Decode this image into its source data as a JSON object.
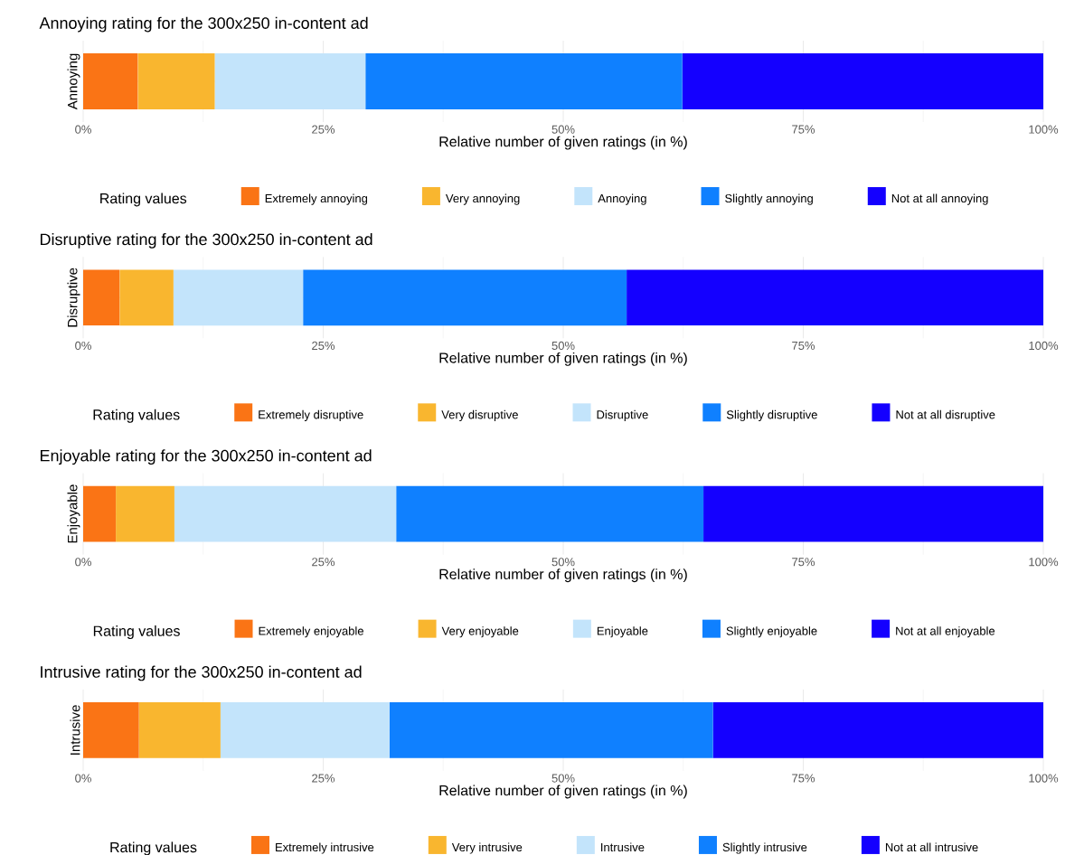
{
  "chart_data": [
    {
      "type": "bar",
      "orientation": "horizontal",
      "stacked": true,
      "title": "Annoying rating for the 300x250 in-content ad",
      "xlabel": "Relative number of given ratings (in %)",
      "legend_title": "Rating values",
      "legend": "bottom",
      "grid": true,
      "categories": [
        "Annoying"
      ],
      "xlim": [
        0,
        100
      ],
      "xticks": [
        {
          "value": 0,
          "label": "0%"
        },
        {
          "value": 25,
          "label": "25%"
        },
        {
          "value": 50,
          "label": "50%"
        },
        {
          "value": 75,
          "label": "75%"
        },
        {
          "value": 100,
          "label": "100%"
        }
      ],
      "series": [
        {
          "name": "Extremely annoying",
          "color": "#fa7415",
          "values": [
            5.7
          ]
        },
        {
          "name": "Very annoying",
          "color": "#f9b62f",
          "values": [
            8.0
          ]
        },
        {
          "name": "Annoying",
          "color": "#c3e4fb",
          "values": [
            15.7
          ]
        },
        {
          "name": "Slightly annoying",
          "color": "#0f80ff",
          "values": [
            33.0
          ]
        },
        {
          "name": "Not at all annoying",
          "color": "#1400ff",
          "values": [
            37.6
          ]
        }
      ]
    },
    {
      "type": "bar",
      "orientation": "horizontal",
      "stacked": true,
      "title": "Disruptive rating for the 300x250 in-content ad",
      "xlabel": "Relative number of given ratings (in %)",
      "legend_title": "Rating values",
      "legend": "bottom",
      "grid": true,
      "categories": [
        "Disruptive"
      ],
      "xlim": [
        0,
        100
      ],
      "xticks": [
        {
          "value": 0,
          "label": "0%"
        },
        {
          "value": 25,
          "label": "25%"
        },
        {
          "value": 50,
          "label": "50%"
        },
        {
          "value": 75,
          "label": "75%"
        },
        {
          "value": 100,
          "label": "100%"
        }
      ],
      "series": [
        {
          "name": "Extremely disruptive",
          "color": "#fa7415",
          "values": [
            3.8
          ]
        },
        {
          "name": "Very disruptive",
          "color": "#f9b62f",
          "values": [
            5.6
          ]
        },
        {
          "name": "Disruptive",
          "color": "#c3e4fb",
          "values": [
            13.5
          ]
        },
        {
          "name": "Slightly disruptive",
          "color": "#0f80ff",
          "values": [
            33.7
          ]
        },
        {
          "name": "Not at all disruptive",
          "color": "#1400ff",
          "values": [
            43.4
          ]
        }
      ]
    },
    {
      "type": "bar",
      "orientation": "horizontal",
      "stacked": true,
      "title": "Enjoyable rating for the 300x250 in-content ad",
      "xlabel": "Relative number of given ratings (in %)",
      "legend_title": "Rating values",
      "legend": "bottom",
      "grid": true,
      "categories": [
        "Enjoyable"
      ],
      "xlim": [
        0,
        100
      ],
      "xticks": [
        {
          "value": 0,
          "label": "0%"
        },
        {
          "value": 25,
          "label": "25%"
        },
        {
          "value": 50,
          "label": "50%"
        },
        {
          "value": 75,
          "label": "75%"
        },
        {
          "value": 100,
          "label": "100%"
        }
      ],
      "series": [
        {
          "name": "Extremely enjoyable",
          "color": "#fa7415",
          "values": [
            3.4
          ]
        },
        {
          "name": "Very enjoyable",
          "color": "#f9b62f",
          "values": [
            6.1
          ]
        },
        {
          "name": "Enjoyable",
          "color": "#c3e4fb",
          "values": [
            23.1
          ]
        },
        {
          "name": "Slightly enjoyable",
          "color": "#0f80ff",
          "values": [
            32.0
          ]
        },
        {
          "name": "Not at all enjoyable",
          "color": "#1400ff",
          "values": [
            35.4
          ]
        }
      ]
    },
    {
      "type": "bar",
      "orientation": "horizontal",
      "stacked": true,
      "title": "Intrusive rating for the 300x250 in-content ad",
      "xlabel": "Relative number of given ratings (in %)",
      "legend_title": "Rating values",
      "legend": "bottom",
      "grid": true,
      "categories": [
        "Intrusive"
      ],
      "xlim": [
        0,
        100
      ],
      "xticks": [
        {
          "value": 0,
          "label": "0%"
        },
        {
          "value": 25,
          "label": "25%"
        },
        {
          "value": 50,
          "label": "50%"
        },
        {
          "value": 75,
          "label": "75%"
        },
        {
          "value": 100,
          "label": "100%"
        }
      ],
      "series": [
        {
          "name": "Extremely intrusive",
          "color": "#fa7415",
          "values": [
            5.8
          ]
        },
        {
          "name": "Very intrusive",
          "color": "#f9b62f",
          "values": [
            8.5
          ]
        },
        {
          "name": "Intrusive",
          "color": "#c3e4fb",
          "values": [
            17.6
          ]
        },
        {
          "name": "Slightly intrusive",
          "color": "#0f80ff",
          "values": [
            33.7
          ]
        },
        {
          "name": "Not at all intrusive",
          "color": "#1400ff",
          "values": [
            34.4
          ]
        }
      ]
    }
  ]
}
